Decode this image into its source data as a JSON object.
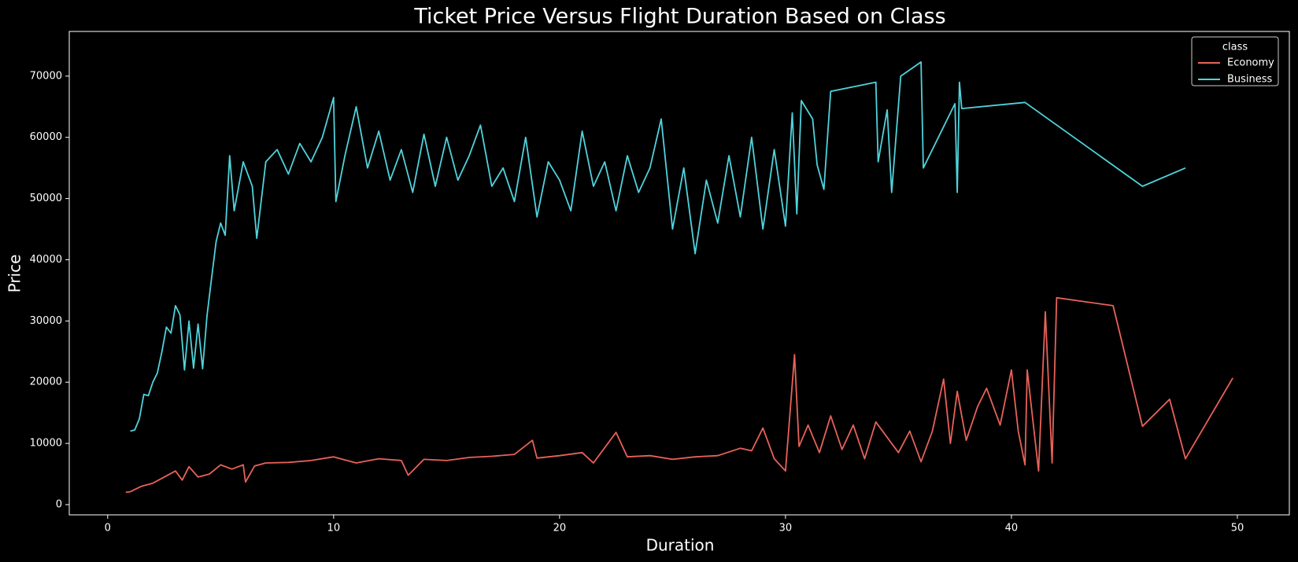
{
  "chart_data": {
    "type": "line",
    "title": "Ticket Price Versus Flight Duration Based on Class",
    "x_label": "Duration",
    "y_label": "Price",
    "xlim": [
      -1.7,
      52.3
    ],
    "ylim": [
      -1670,
      77300
    ],
    "xticks": [
      0,
      10,
      20,
      30,
      40,
      50
    ],
    "yticks": [
      0,
      10000,
      20000,
      30000,
      40000,
      50000,
      60000,
      70000
    ],
    "legend_title": "class",
    "legend_position": "upper right",
    "series": [
      {
        "name": "Economy",
        "color": "#e8625a",
        "x": [
          0.8,
          1.0,
          1.5,
          2.0,
          2.5,
          3,
          3.3,
          3.6,
          4,
          4.5,
          5,
          5.5,
          6,
          6.1,
          6.5,
          7,
          8,
          9,
          10,
          11,
          12,
          13,
          13.3,
          14,
          15,
          16,
          17,
          18,
          18.8,
          19,
          20,
          21,
          21.5,
          22.5,
          23,
          24,
          25,
          26,
          27,
          28,
          28.5,
          29,
          29.5,
          30,
          30.4,
          30.6,
          31,
          31.5,
          32,
          32.5,
          33,
          33.5,
          34,
          35,
          35.5,
          36,
          36.5,
          37,
          37.3,
          37.6,
          38,
          38.5,
          38.9,
          39.5,
          40,
          40.3,
          40.6,
          40.7,
          41.2,
          41.5,
          41.8,
          42,
          44.5,
          45.8,
          47,
          47.7,
          49.8
        ],
        "values": [
          2000,
          2100,
          3000,
          3500,
          4500,
          5500,
          4000,
          6200,
          4500,
          5000,
          6500,
          5800,
          6500,
          3700,
          6300,
          6800,
          6900,
          7200,
          7800,
          6800,
          7500,
          7200,
          4800,
          7400,
          7200,
          7700,
          7900,
          8200,
          10500,
          7600,
          8000,
          8500,
          6800,
          11800,
          7800,
          8000,
          7400,
          7800,
          8000,
          9200,
          8800,
          12500,
          7500,
          5500,
          24500,
          9500,
          13000,
          8500,
          14500,
          9000,
          13000,
          7500,
          13500,
          8500,
          12000,
          7000,
          12000,
          20500,
          10000,
          18500,
          10500,
          16000,
          19000,
          13000,
          22000,
          12000,
          6500,
          22000,
          5500,
          31500,
          6800,
          33800,
          32500,
          12800,
          17200,
          7500,
          20700
        ]
      },
      {
        "name": "Business",
        "color": "#4fd3dc",
        "x": [
          1.0,
          1.2,
          1.4,
          1.6,
          1.8,
          2.0,
          2.2,
          2.4,
          2.6,
          2.8,
          3.0,
          3.2,
          3.4,
          3.6,
          3.8,
          4.0,
          4.2,
          4.4,
          4.6,
          4.8,
          5.0,
          5.2,
          5.4,
          5.6,
          6.0,
          6.4,
          6.6,
          7.0,
          7.5,
          8.0,
          8.5,
          9.0,
          9.5,
          10.0,
          10.1,
          10.5,
          11.0,
          11.5,
          12,
          12.5,
          13,
          13.5,
          14,
          14.5,
          15,
          15.5,
          16,
          16.5,
          17,
          17.5,
          18,
          18.5,
          19,
          19.5,
          20,
          20.5,
          21,
          21.5,
          22,
          22.5,
          23,
          23.5,
          24,
          24.5,
          25,
          25.5,
          26,
          26.5,
          27,
          27.5,
          28,
          28.5,
          29,
          29.5,
          30,
          30.3,
          30.5,
          30.7,
          31.2,
          31.4,
          31.7,
          32.0,
          34.0,
          34.1,
          34.5,
          34.7,
          35.1,
          36.0,
          36.1,
          37.5,
          37.6,
          37.7,
          37.8,
          40.6,
          45.8,
          47.7
        ],
        "values": [
          12000,
          12200,
          14000,
          18000,
          17800,
          20000,
          21500,
          25000,
          29000,
          28000,
          32500,
          31000,
          22000,
          30000,
          22300,
          29500,
          22200,
          31000,
          37000,
          43000,
          46000,
          44000,
          57000,
          48000,
          56000,
          52000,
          43500,
          56000,
          58000,
          54000,
          59000,
          56000,
          60000,
          66500,
          49500,
          57000,
          65000,
          55000,
          61000,
          53000,
          58000,
          51000,
          60500,
          52000,
          60000,
          53000,
          57000,
          62000,
          52000,
          55000,
          49500,
          60000,
          47000,
          56000,
          53000,
          48000,
          61000,
          52000,
          56000,
          48000,
          57000,
          51000,
          55000,
          63000,
          45000,
          55000,
          41000,
          53000,
          46000,
          57000,
          47000,
          60000,
          45000,
          58000,
          45500,
          64000,
          47500,
          66000,
          63000,
          55500,
          51500,
          67500,
          69000,
          56000,
          64500,
          51000,
          70000,
          72300,
          55000,
          65500,
          51000,
          69000,
          64700,
          65700,
          52000,
          55000
        ]
      }
    ]
  }
}
